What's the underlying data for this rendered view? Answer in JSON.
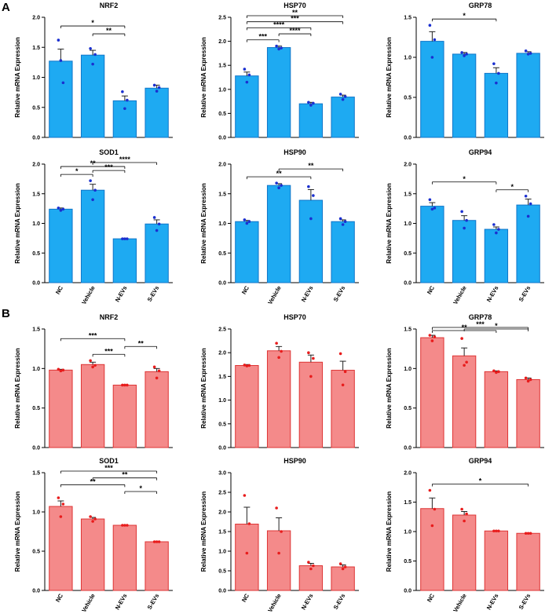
{
  "panel_labels": [
    "A",
    "B"
  ],
  "colors": {
    "A": {
      "bar": "#1eaaf2",
      "edge": "#1176c9",
      "dot": "#1a2fd0"
    },
    "B": {
      "bar": "#f48a8a",
      "edge": "#de3434",
      "dot": "#e81c1c"
    }
  },
  "chart_data": [
    {
      "id": "A-NRF2",
      "group": "A",
      "type": "bar",
      "title": "NRF2",
      "ylabel": "Relative mRNA Expression",
      "categories": [
        "NC",
        "Vehicle",
        "N-EVs",
        "S-EVs"
      ],
      "show_categories": false,
      "values": [
        1.27,
        1.37,
        0.61,
        0.82
      ],
      "errors": [
        0.2,
        0.08,
        0.08,
        0.05
      ],
      "points": [
        [
          1.62,
          1.28,
          0.91
        ],
        [
          1.48,
          1.22,
          1.38
        ],
        [
          0.76,
          0.48,
          0.62
        ],
        [
          0.87,
          0.77,
          0.83
        ]
      ],
      "ylim": [
        0,
        2.0
      ],
      "yticks": [
        "0.0",
        "0.5",
        "1.0",
        "1.5",
        "2.0"
      ],
      "sig": [
        {
          "from": 0,
          "to": 2,
          "label": "*"
        },
        {
          "from": 1,
          "to": 2,
          "label": "**"
        }
      ]
    },
    {
      "id": "A-HSP70",
      "group": "A",
      "type": "bar",
      "title": "HSP70",
      "ylabel": "Relative mRNA Expression",
      "categories": [
        "NC",
        "Vehicle",
        "N-EVs",
        "S-EVs"
      ],
      "show_categories": false,
      "values": [
        1.28,
        1.87,
        0.7,
        0.84
      ],
      "errors": [
        0.08,
        0.03,
        0.03,
        0.04
      ],
      "points": [
        [
          1.42,
          1.15,
          1.3
        ],
        [
          1.9,
          1.84,
          1.86
        ],
        [
          0.73,
          0.67,
          0.71
        ],
        [
          0.9,
          0.79,
          0.85
        ]
      ],
      "ylim": [
        0,
        2.5
      ],
      "yticks": [
        "0.0",
        "0.5",
        "1.0",
        "1.5",
        "2.0",
        "2.5"
      ],
      "sig": [
        {
          "from": 0,
          "to": 1,
          "label": "***"
        },
        {
          "from": 1,
          "to": 2,
          "label": "****"
        },
        {
          "from": 0,
          "to": 2,
          "label": "****"
        },
        {
          "from": 0,
          "to": 3,
          "label": "***"
        },
        {
          "from": 0,
          "to": 3,
          "label": "**"
        }
      ]
    },
    {
      "id": "A-GRP78",
      "group": "A",
      "type": "bar",
      "title": "GRP78",
      "ylabel": "Relative mRNA Expression",
      "categories": [
        "NC",
        "Vehicle",
        "N-EVs",
        "S-EVs"
      ],
      "show_categories": false,
      "values": [
        1.2,
        1.04,
        0.8,
        1.05
      ],
      "errors": [
        0.12,
        0.02,
        0.07,
        0.02
      ],
      "points": [
        [
          1.4,
          1.0,
          1.22
        ],
        [
          1.06,
          1.02,
          1.04
        ],
        [
          0.92,
          0.68,
          0.8
        ],
        [
          1.08,
          1.04,
          1.05
        ]
      ],
      "ylim": [
        0,
        1.5
      ],
      "yticks": [
        "0.0",
        "0.5",
        "1.0",
        "1.5"
      ],
      "sig": [
        {
          "from": 0,
          "to": 2,
          "label": "*"
        }
      ]
    },
    {
      "id": "A-SOD1",
      "group": "A",
      "type": "bar",
      "title": "SOD1",
      "ylabel": "Relative mRNA Expression",
      "categories": [
        "NC",
        "Vehicle",
        "N-EVs",
        "S-EVs"
      ],
      "show_categories": true,
      "values": [
        1.24,
        1.56,
        0.74,
        0.99
      ],
      "errors": [
        0.02,
        0.1,
        0.01,
        0.07
      ],
      "points": [
        [
          1.26,
          1.22,
          1.24
        ],
        [
          1.72,
          1.4,
          1.56
        ],
        [
          0.74,
          0.74,
          0.74
        ],
        [
          1.1,
          0.88,
          0.99
        ]
      ],
      "ylim": [
        0,
        2.0
      ],
      "yticks": [
        "0.0",
        "0.5",
        "1.0",
        "1.5",
        "2.0"
      ],
      "sig": [
        {
          "from": 0,
          "to": 1,
          "label": "*"
        },
        {
          "from": 0,
          "to": 2,
          "label": "**"
        },
        {
          "from": 1,
          "to": 2,
          "label": "***"
        },
        {
          "from": 1,
          "to": 3,
          "label": "****"
        }
      ]
    },
    {
      "id": "A-HSP90",
      "group": "A",
      "type": "bar",
      "title": "HSP90",
      "ylabel": "Relative mRNA Expression",
      "categories": [
        "NC",
        "Vehicle",
        "N-EVs",
        "S-EVs"
      ],
      "show_categories": true,
      "values": [
        1.03,
        1.64,
        1.39,
        1.03
      ],
      "errors": [
        0.02,
        0.03,
        0.18,
        0.03
      ],
      "points": [
        [
          1.06,
          1.0,
          1.03
        ],
        [
          1.68,
          1.6,
          1.64
        ],
        [
          1.62,
          1.08,
          1.47
        ],
        [
          1.08,
          0.98,
          1.03
        ]
      ],
      "ylim": [
        0,
        2.0
      ],
      "yticks": [
        "0.0",
        "0.5",
        "1.0",
        "1.5",
        "2.0"
      ],
      "sig": [
        {
          "from": 0,
          "to": 2,
          "label": "**"
        },
        {
          "from": 1,
          "to": 3,
          "label": "**"
        }
      ]
    },
    {
      "id": "A-GRP94",
      "group": "A",
      "type": "bar",
      "title": "GRP94",
      "ylabel": "Relative mRNA Expression",
      "categories": [
        "NC",
        "Vehicle",
        "N-EVs",
        "S-EVs"
      ],
      "show_categories": true,
      "values": [
        1.29,
        1.05,
        0.9,
        1.31
      ],
      "errors": [
        0.06,
        0.08,
        0.04,
        0.1
      ],
      "points": [
        [
          1.4,
          1.24,
          1.26
        ],
        [
          1.2,
          0.92,
          1.05
        ],
        [
          0.98,
          0.84,
          0.9
        ],
        [
          1.46,
          1.12,
          1.33
        ]
      ],
      "ylim": [
        0,
        2.0
      ],
      "yticks": [
        "0.0",
        "0.5",
        "1.0",
        "1.5",
        "2.0"
      ],
      "sig": [
        {
          "from": 0,
          "to": 2,
          "label": "*"
        },
        {
          "from": 2,
          "to": 3,
          "label": "*"
        }
      ]
    },
    {
      "id": "B-NRF2",
      "group": "B",
      "type": "bar",
      "title": "NRF2",
      "ylabel": "Relative mRNA Expression",
      "categories": [
        "NC",
        "Vehicle",
        "N-EVs",
        "S-EVs"
      ],
      "show_categories": false,
      "values": [
        0.98,
        1.05,
        0.79,
        0.96
      ],
      "errors": [
        0.01,
        0.03,
        0.005,
        0.04
      ],
      "points": [
        [
          0.99,
          0.97,
          0.98
        ],
        [
          1.1,
          1.02,
          1.04
        ],
        [
          0.79,
          0.79,
          0.79
        ],
        [
          1.02,
          0.88,
          0.97
        ]
      ],
      "ylim": [
        0,
        1.5
      ],
      "yticks": [
        "0.0",
        "0.5",
        "1.0",
        "1.5"
      ],
      "sig": [
        {
          "from": 0,
          "to": 2,
          "label": "***"
        },
        {
          "from": 1,
          "to": 2,
          "label": "***"
        },
        {
          "from": 2,
          "to": 3,
          "label": "**"
        }
      ]
    },
    {
      "id": "B-HSP70",
      "group": "B",
      "type": "bar",
      "title": "HSP70",
      "ylabel": "Relative mRNA Expression",
      "categories": [
        "NC",
        "Vehicle",
        "N-EVs",
        "S-EVs"
      ],
      "show_categories": false,
      "values": [
        1.73,
        2.04,
        1.8,
        1.63
      ],
      "errors": [
        0.02,
        0.09,
        0.15,
        0.19
      ],
      "points": [
        [
          1.74,
          1.72,
          1.73
        ],
        [
          2.2,
          1.9,
          2.03
        ],
        [
          2.0,
          1.5,
          1.88
        ],
        [
          1.98,
          1.32,
          1.6
        ]
      ],
      "ylim": [
        0,
        2.5
      ],
      "yticks": [
        "0.0",
        "0.5",
        "1.0",
        "1.5",
        "2.0",
        "2.5"
      ],
      "sig": []
    },
    {
      "id": "B-GRP78",
      "group": "B",
      "type": "bar",
      "title": "GRP78",
      "ylabel": "Relative mRNA Expression",
      "categories": [
        "NC",
        "Vehicle",
        "N-EVs",
        "S-EVs"
      ],
      "show_categories": false,
      "values": [
        1.39,
        1.16,
        0.96,
        0.86
      ],
      "errors": [
        0.03,
        0.1,
        0.01,
        0.02
      ],
      "points": [
        [
          1.42,
          1.35,
          1.4
        ],
        [
          1.38,
          1.04,
          1.08
        ],
        [
          0.97,
          0.95,
          0.96
        ],
        [
          0.88,
          0.84,
          0.86
        ]
      ],
      "ylim": [
        0,
        1.5
      ],
      "yticks": [
        "0.0",
        "0.5",
        "1.0",
        "1.5"
      ],
      "sig": [
        {
          "from": 0,
          "to": 2,
          "label": "**"
        },
        {
          "from": 0,
          "to": 3,
          "label": "***"
        },
        {
          "from": 1,
          "to": 3,
          "label": "*"
        }
      ]
    },
    {
      "id": "B-SOD1",
      "group": "B",
      "type": "bar",
      "title": "SOD1",
      "ylabel": "Relative mRNA Expression",
      "categories": [
        "NC",
        "Vehicle",
        "N-EVs",
        "S-EVs"
      ],
      "show_categories": true,
      "values": [
        1.07,
        0.91,
        0.83,
        0.62
      ],
      "errors": [
        0.07,
        0.02,
        0.005,
        0.005
      ],
      "points": [
        [
          1.18,
          0.94,
          1.1
        ],
        [
          0.94,
          0.88,
          0.91
        ],
        [
          0.83,
          0.83,
          0.83
        ],
        [
          0.62,
          0.62,
          0.62
        ]
      ],
      "ylim": [
        0,
        1.5
      ],
      "yticks": [
        "0.0",
        "0.5",
        "1.0",
        "1.5"
      ],
      "sig": [
        {
          "from": 0,
          "to": 2,
          "label": "**"
        },
        {
          "from": 0,
          "to": 3,
          "label": "***"
        },
        {
          "from": 1,
          "to": 3,
          "label": "**"
        },
        {
          "from": 2,
          "to": 3,
          "label": "*"
        }
      ]
    },
    {
      "id": "B-HSP90",
      "group": "B",
      "type": "bar",
      "title": "HSP90",
      "ylabel": "Relative mRNA Expression",
      "categories": [
        "NC",
        "Vehicle",
        "N-EVs",
        "S-EVs"
      ],
      "show_categories": true,
      "values": [
        1.69,
        1.52,
        0.63,
        0.6
      ],
      "errors": [
        0.43,
        0.33,
        0.06,
        0.05
      ],
      "points": [
        [
          2.42,
          0.95,
          1.7
        ],
        [
          2.1,
          0.95,
          1.5
        ],
        [
          0.72,
          0.55,
          0.63
        ],
        [
          0.68,
          0.55,
          0.6
        ]
      ],
      "ylim": [
        0,
        3.0
      ],
      "yticks": [
        "0.0",
        "0.5",
        "1.0",
        "1.5",
        "2.0",
        "2.5",
        "3.0"
      ],
      "sig": []
    },
    {
      "id": "B-GRP94",
      "group": "B",
      "type": "bar",
      "title": "GRP94",
      "ylabel": "Relative mRNA Expression",
      "categories": [
        "NC",
        "Vehicle",
        "N-EVs",
        "S-EVs"
      ],
      "show_categories": true,
      "values": [
        1.39,
        1.28,
        1.01,
        0.97
      ],
      "errors": [
        0.18,
        0.06,
        0.005,
        0.005
      ],
      "points": [
        [
          1.7,
          1.1,
          1.38
        ],
        [
          1.38,
          1.18,
          1.3
        ],
        [
          1.01,
          1.01,
          1.01
        ],
        [
          0.97,
          0.97,
          0.97
        ]
      ],
      "ylim": [
        0,
        2.0
      ],
      "yticks": [
        "0.0",
        "0.5",
        "1.0",
        "1.5",
        "2.0"
      ],
      "sig": [
        {
          "from": 0,
          "to": 3,
          "label": "*"
        }
      ]
    }
  ]
}
